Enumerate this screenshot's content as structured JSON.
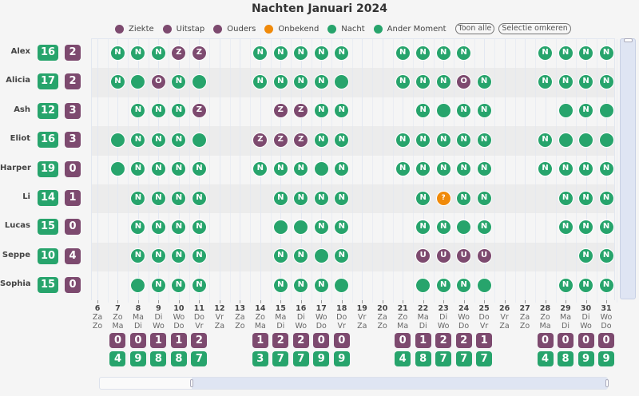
{
  "title": "Nachten Januari 2024",
  "legend": [
    {
      "label": "Ziekte",
      "color": "#7d4a6f"
    },
    {
      "label": "Uitstap",
      "color": "#7d4a6f"
    },
    {
      "label": "Ouders",
      "color": "#7d4a6f"
    },
    {
      "label": "Onbekend",
      "color": "#f08a0a"
    },
    {
      "label": "Nacht",
      "color": "#27a46c"
    },
    {
      "label": "Ander Moment",
      "color": "#27a46c"
    }
  ],
  "buttons": {
    "show_all": "Toon alle",
    "invert": "Selectie omkeren"
  },
  "colors": {
    "green": "#27a46c",
    "purple": "#7d4a6f",
    "orange": "#f08a0a"
  },
  "codes": {
    "N": {
      "category": "Nacht",
      "label": "N",
      "color": "green"
    },
    "A": {
      "category": "Ander Moment",
      "label": "",
      "color": "green"
    },
    "Z": {
      "category": "Ziekte",
      "label": "Z",
      "color": "purple"
    },
    "O": {
      "category": "Ouders",
      "label": "O",
      "color": "purple"
    },
    "U": {
      "category": "Uitstap",
      "label": "U",
      "color": "purple"
    },
    "?": {
      "category": "Onbekend",
      "label": "?",
      "color": "orange"
    }
  },
  "chart_data": {
    "type": "heatmap",
    "title": "Nachten Januari 2024",
    "days": [
      {
        "d": "6",
        "a": "Za",
        "b": "Zo"
      },
      {
        "d": "7",
        "a": "Zo",
        "b": "Ma"
      },
      {
        "d": "8",
        "a": "Ma",
        "b": "Di"
      },
      {
        "d": "9",
        "a": "Di",
        "b": "Wo"
      },
      {
        "d": "10",
        "a": "Wo",
        "b": "Do"
      },
      {
        "d": "11",
        "a": "Do",
        "b": "Vr"
      },
      {
        "d": "12",
        "a": "Vr",
        "b": "Za"
      },
      {
        "d": "13",
        "a": "Za",
        "b": "Zo"
      },
      {
        "d": "14",
        "a": "Zo",
        "b": "Ma"
      },
      {
        "d": "15",
        "a": "Ma",
        "b": "Di"
      },
      {
        "d": "16",
        "a": "Di",
        "b": "Wo"
      },
      {
        "d": "17",
        "a": "Wo",
        "b": "Do"
      },
      {
        "d": "18",
        "a": "Do",
        "b": "Vr"
      },
      {
        "d": "19",
        "a": "Vr",
        "b": "Za"
      },
      {
        "d": "20",
        "a": "Za",
        "b": "Zo"
      },
      {
        "d": "21",
        "a": "Zo",
        "b": "Ma"
      },
      {
        "d": "22",
        "a": "Ma",
        "b": "Di"
      },
      {
        "d": "23",
        "a": "Di",
        "b": "Wo"
      },
      {
        "d": "24",
        "a": "Wo",
        "b": "Do"
      },
      {
        "d": "25",
        "a": "Do",
        "b": "Vr"
      },
      {
        "d": "26",
        "a": "Vr",
        "b": "Za"
      },
      {
        "d": "27",
        "a": "Za",
        "b": "Zo"
      },
      {
        "d": "28",
        "a": "Zo",
        "b": "Ma"
      },
      {
        "d": "29",
        "a": "Ma",
        "b": "Di"
      },
      {
        "d": "30",
        "a": "Di",
        "b": "Wo"
      },
      {
        "d": "31",
        "a": "Wo",
        "b": "Do"
      }
    ],
    "people": [
      {
        "name": "Alex",
        "green": "16",
        "purple": "2",
        "cells": "-NNNZZ--NNNNN--NNNN---NNNN"
      },
      {
        "name": "Alicia",
        "green": "17",
        "purple": "2",
        "cells": "-NAONA--NNNNA--NNNON--NNNN"
      },
      {
        "name": "Ash",
        "green": "12",
        "purple": "3",
        "cells": "--NNNZ---ZZNN---NANN---ANA"
      },
      {
        "name": "Eliot",
        "green": "16",
        "purple": "3",
        "cells": "-ANNNA--ZZZNN--NNNNN--NAAA"
      },
      {
        "name": "Harper",
        "green": "19",
        "purple": "0",
        "cells": "-ANNNN--NNNAN--NNNNN--NNNN"
      },
      {
        "name": "Li",
        "green": "14",
        "purple": "1",
        "cells": "--NNNN---NNNN---N?NN---NNN"
      },
      {
        "name": "Lucas",
        "green": "15",
        "purple": "0",
        "cells": "--NNNN---AANN---NNAN---NNN"
      },
      {
        "name": "Seppe",
        "green": "10",
        "purple": "4",
        "cells": "--NNNN---NNAN---UUUU----NN"
      },
      {
        "name": "Sophia",
        "green": "15",
        "purple": "0",
        "cells": "--ANNN---NNNA---ANNA---NNN"
      }
    ],
    "totals_purple": [
      null,
      "0",
      "0",
      "1",
      "1",
      "2",
      null,
      null,
      "1",
      "2",
      "2",
      "0",
      "0",
      null,
      null,
      "0",
      "1",
      "2",
      "2",
      "1",
      null,
      null,
      "0",
      "0",
      "0",
      "0"
    ],
    "totals_green": [
      null,
      "4",
      "9",
      "8",
      "8",
      "7",
      null,
      null,
      "3",
      "7",
      "7",
      "9",
      "9",
      null,
      null,
      "4",
      "8",
      "7",
      "7",
      "7",
      null,
      null,
      "4",
      "8",
      "9",
      "9"
    ]
  }
}
